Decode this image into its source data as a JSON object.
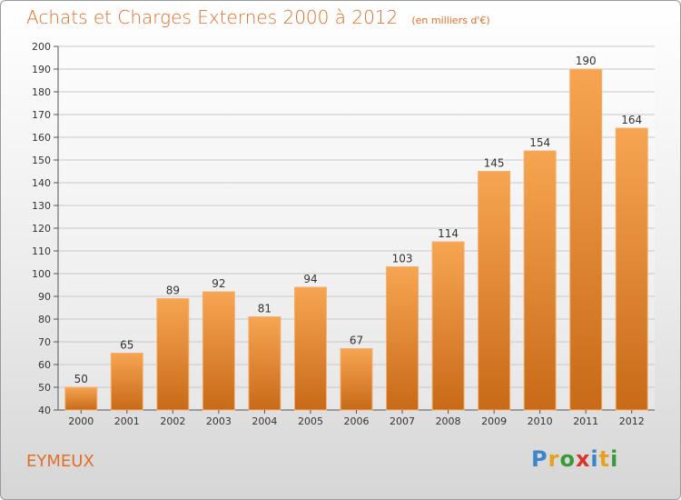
{
  "header": {
    "title": "Achats et Charges Externes 2000 à 2012",
    "subtitle": "(en milliers d'€)"
  },
  "footer": {
    "place": "EYMEUX",
    "logo_text": "Proxiti",
    "logo_letters": [
      {
        "char": "P",
        "color": "#3a86c8"
      },
      {
        "char": "r",
        "color": "#e8a020"
      },
      {
        "char": "o",
        "color": "#3a9a3a"
      },
      {
        "char": "x",
        "color": "#d8342a"
      },
      {
        "char": "i",
        "color": "#3a86c8"
      },
      {
        "char": "t",
        "color": "#e8a020"
      },
      {
        "char": "i",
        "color": "#3a9a3a"
      }
    ]
  },
  "colors": {
    "accent": "#e06f28",
    "bar_top": "#f7a552",
    "bar_bottom": "#c86a18",
    "grid": "#c8c8c8"
  },
  "chart_data": {
    "type": "bar",
    "title": "Achats et Charges Externes 2000 à 2012",
    "subtitle": "(en milliers d'€)",
    "categories": [
      "2000",
      "2001",
      "2002",
      "2003",
      "2004",
      "2005",
      "2006",
      "2007",
      "2008",
      "2009",
      "2010",
      "2011",
      "2012"
    ],
    "values": [
      50,
      65,
      89,
      92,
      81,
      94,
      67,
      103,
      114,
      145,
      154,
      190,
      164
    ],
    "ylim": [
      40,
      200
    ],
    "yticks": [
      40,
      50,
      60,
      70,
      80,
      90,
      100,
      110,
      120,
      130,
      140,
      150,
      160,
      170,
      180,
      190,
      200
    ],
    "grid": true,
    "data_labels": true
  }
}
